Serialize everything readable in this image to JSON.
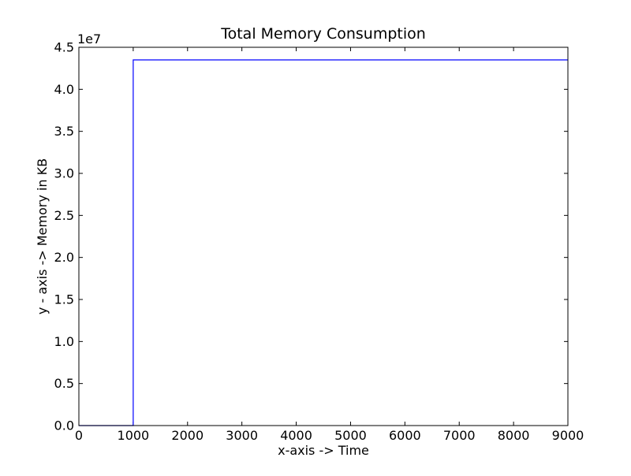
{
  "chart_data": {
    "type": "line",
    "title": "Total Memory Consumption",
    "xlabel": "x-axis -> Time",
    "ylabel": "y - axis -> Memory in KB",
    "xlim": [
      0,
      9000
    ],
    "ylim": [
      0,
      4.5
    ],
    "y_offset_label": "1e7",
    "x_ticks": [
      0,
      1000,
      2000,
      3000,
      4000,
      5000,
      6000,
      7000,
      8000,
      9000
    ],
    "y_ticks": [
      0.0,
      0.5,
      1.0,
      1.5,
      2.0,
      2.5,
      3.0,
      3.5,
      4.0,
      4.5
    ],
    "y_tick_labels": [
      "0.0",
      "0.5",
      "1.0",
      "1.5",
      "2.0",
      "2.5",
      "3.0",
      "3.5",
      "4.0",
      "4.5"
    ],
    "grid": false,
    "series": [
      {
        "color": "#0000ff",
        "x": [
          0,
          1000,
          1000,
          9000
        ],
        "y": [
          0.0,
          0.0,
          4.35,
          4.35
        ]
      }
    ]
  }
}
